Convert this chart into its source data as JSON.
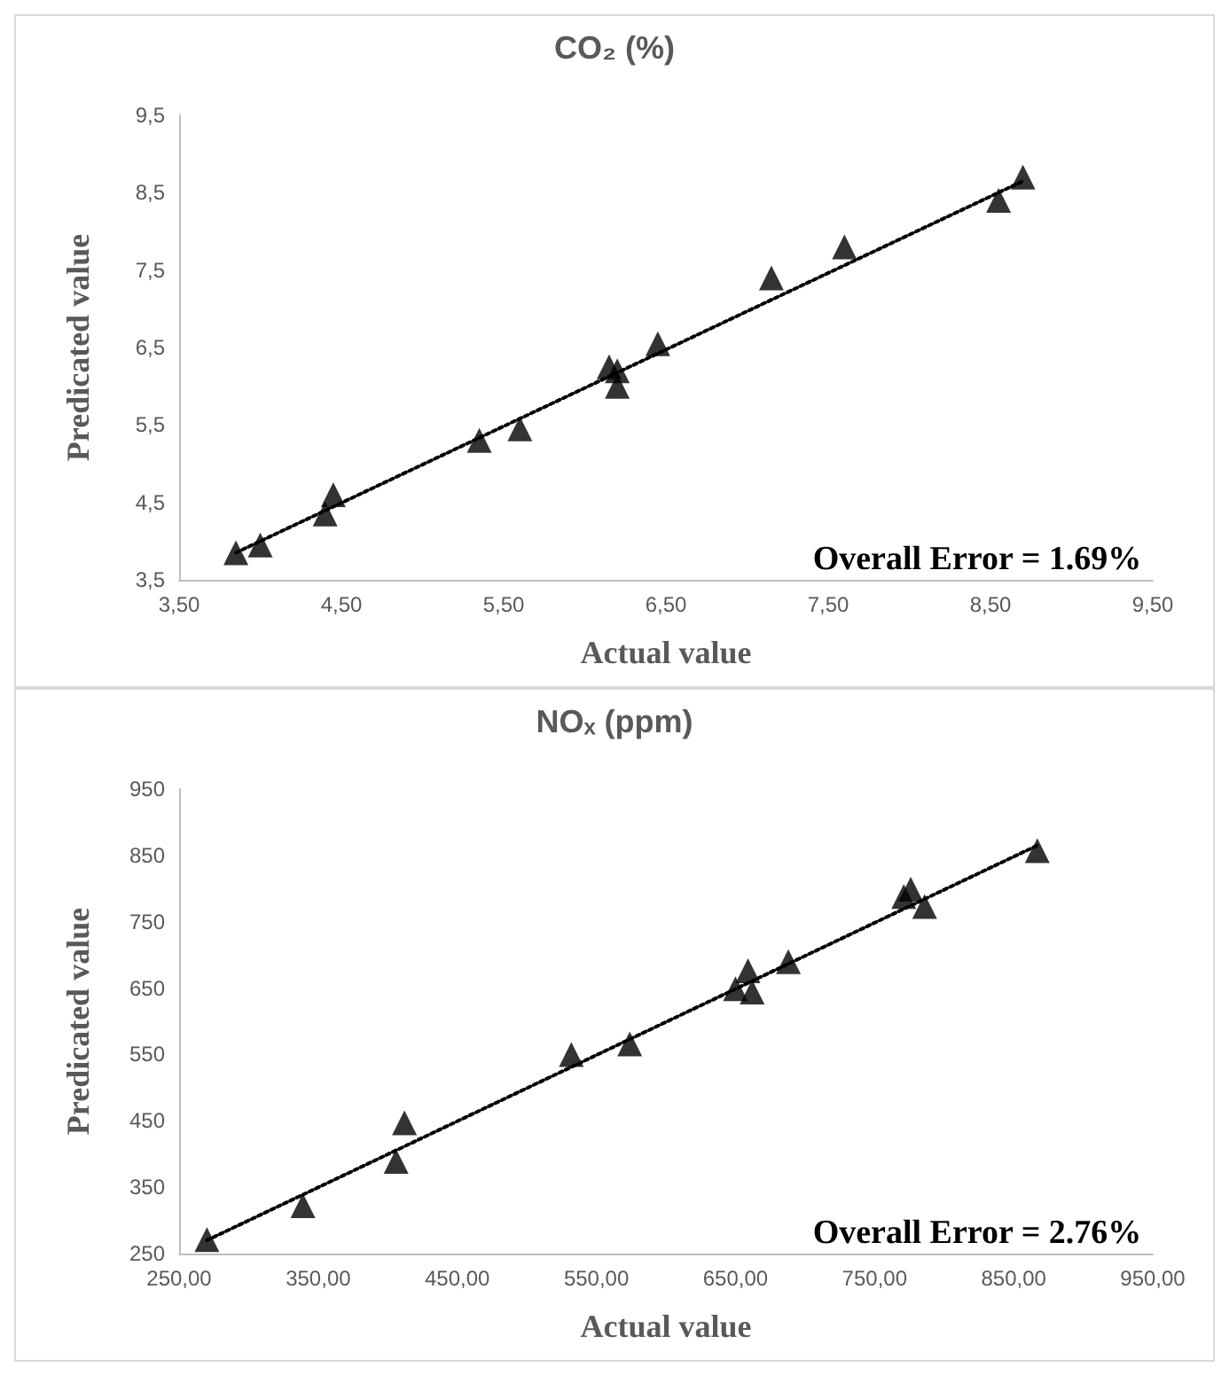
{
  "chart_data": [
    {
      "type": "scatter",
      "title": "CO₂ (%)",
      "xlabel": "Actual value",
      "ylabel": "Predicated value",
      "marker": "triangle",
      "grid": false,
      "xlim": [
        3.5,
        9.5
      ],
      "xticks": [
        {
          "value": 3.5,
          "label": "3,50"
        },
        {
          "value": 4.5,
          "label": "4,50"
        },
        {
          "value": 5.5,
          "label": "5,50"
        },
        {
          "value": 6.5,
          "label": "6,50"
        },
        {
          "value": 7.5,
          "label": "7,50"
        },
        {
          "value": 8.5,
          "label": "8,50"
        },
        {
          "value": 9.5,
          "label": "9,50"
        }
      ],
      "ylim": [
        3.5,
        9.5
      ],
      "yticks": [
        {
          "value": 3.5,
          "label": "3,5"
        },
        {
          "value": 4.5,
          "label": "4,5"
        },
        {
          "value": 5.5,
          "label": "5,5"
        },
        {
          "value": 6.5,
          "label": "6,5"
        },
        {
          "value": 7.5,
          "label": "7,5"
        },
        {
          "value": 8.5,
          "label": "8,5"
        },
        {
          "value": 9.5,
          "label": "9,5"
        }
      ],
      "annotations": [
        "Overall Error = 1.69%"
      ],
      "series": [
        {
          "color": "#000000",
          "x": [
            3.85,
            4.0,
            4.4,
            4.45,
            5.35,
            5.6,
            6.15,
            6.2,
            6.2,
            6.45,
            7.15,
            7.6,
            8.55,
            8.7
          ],
          "values": [
            3.85,
            3.95,
            4.35,
            4.6,
            5.3,
            5.45,
            6.25,
            6.2,
            6.0,
            6.55,
            7.4,
            7.8,
            8.4,
            8.7
          ]
        },
        {
          "type": "line",
          "color": "#000000",
          "line_style": "dotted",
          "marker": "none",
          "x": [
            3.85,
            8.7
          ],
          "values": [
            3.85,
            8.65
          ]
        }
      ]
    },
    {
      "type": "scatter",
      "title": "NOₓ (ppm)",
      "xlabel": "Actual value",
      "ylabel": "Predicated value",
      "marker": "triangle",
      "grid": false,
      "xlim": [
        250,
        950
      ],
      "xticks": [
        {
          "value": 250,
          "label": "250,00"
        },
        {
          "value": 350,
          "label": "350,00"
        },
        {
          "value": 450,
          "label": "450,00"
        },
        {
          "value": 550,
          "label": "550,00"
        },
        {
          "value": 650,
          "label": "650,00"
        },
        {
          "value": 750,
          "label": "750,00"
        },
        {
          "value": 850,
          "label": "850,00"
        },
        {
          "value": 950,
          "label": "950,00"
        }
      ],
      "ylim": [
        250,
        950
      ],
      "yticks": [
        250,
        350,
        450,
        550,
        650,
        750,
        850,
        950
      ],
      "annotations": [
        "Overall Error = 2.76%"
      ],
      "series": [
        {
          "color": "#000000",
          "x": [
            270,
            339,
            406,
            412,
            532,
            574,
            650,
            659,
            662,
            688,
            771,
            776,
            786,
            867
          ],
          "values": [
            271,
            322,
            389,
            447,
            550,
            566,
            649,
            676,
            644,
            690,
            788,
            799,
            773,
            857
          ]
        },
        {
          "type": "line",
          "color": "#000000",
          "line_style": "dotted",
          "marker": "none",
          "x": [
            270,
            867
          ],
          "values": [
            270,
            865
          ]
        }
      ]
    }
  ]
}
